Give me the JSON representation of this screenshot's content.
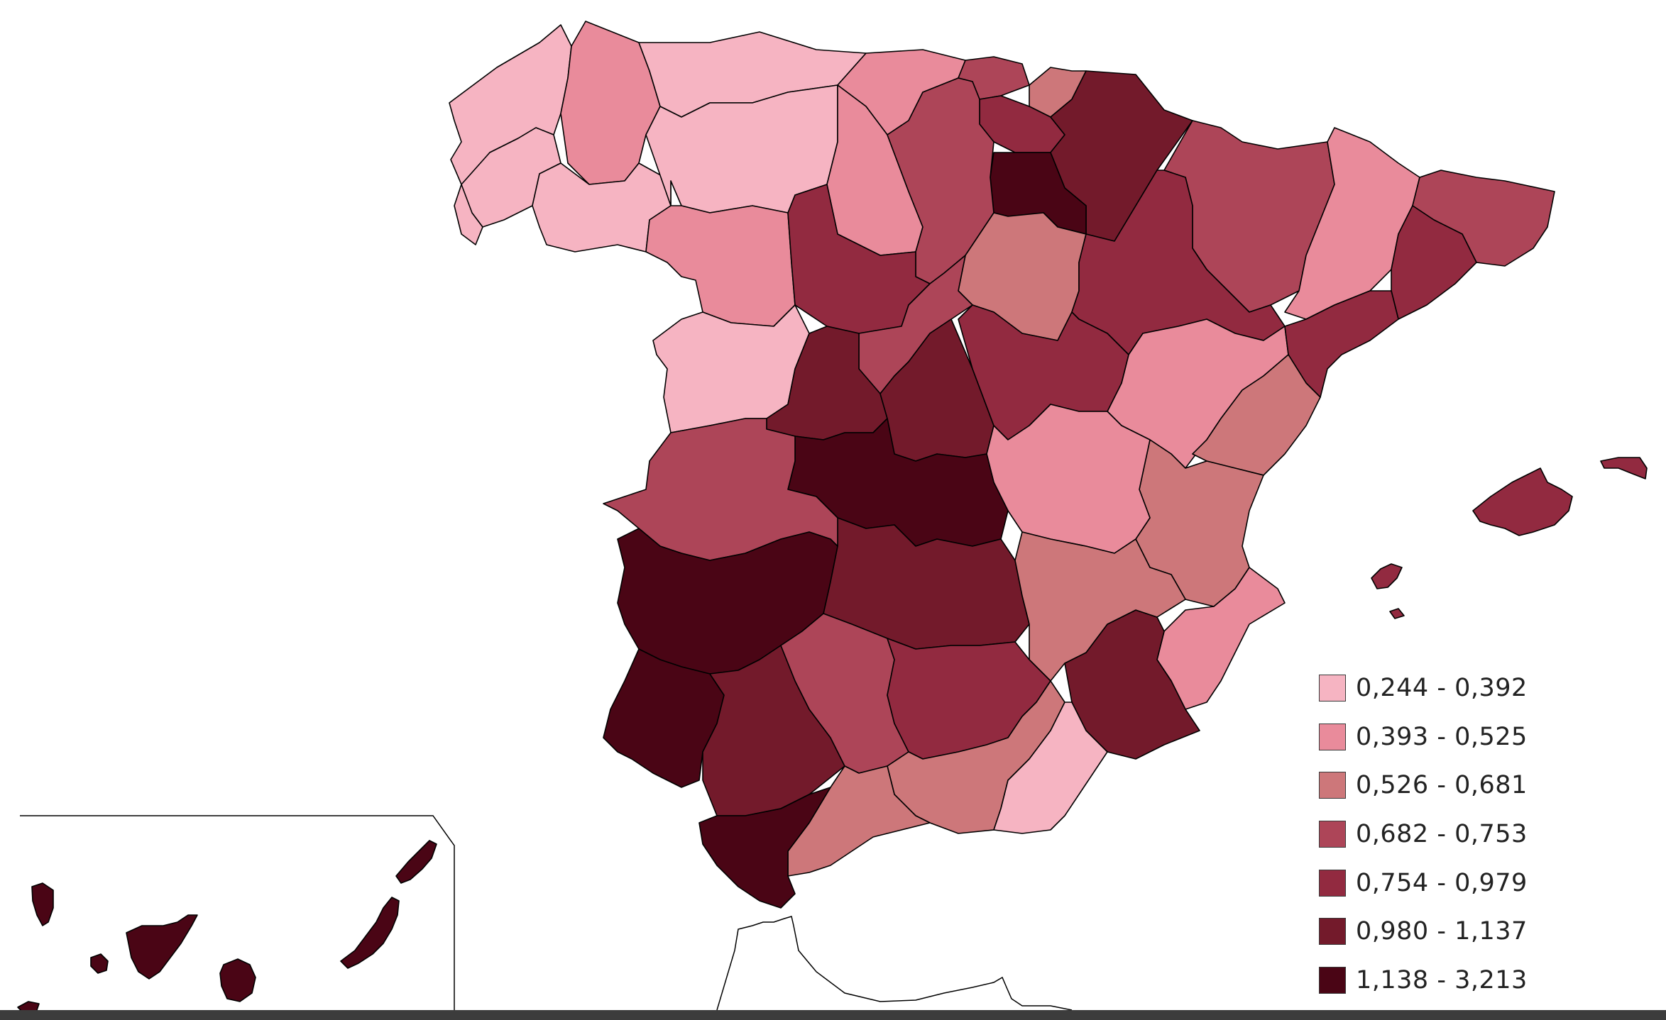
{
  "colors": {
    "c1": "#f6b4c2",
    "c2": "#e98b9b",
    "c3": "#cd777a",
    "c4": "#ad4558",
    "c5": "#922a40",
    "c6": "#731a2b",
    "c7": "#4a0515"
  },
  "legend": {
    "items": [
      {
        "label": "0,244 - 0,392",
        "color": "#f6b4c2"
      },
      {
        "label": "0,393 - 0,525",
        "color": "#e98b9b"
      },
      {
        "label": "0,526 - 0,681",
        "color": "#cd777a"
      },
      {
        "label": "0,682 - 0,753",
        "color": "#ad4558"
      },
      {
        "label": "0,754 - 0,979",
        "color": "#922a40"
      },
      {
        "label": "0,980 - 1,137",
        "color": "#731a2b"
      },
      {
        "label": "1,138 - 3,213",
        "color": "#4a0515"
      }
    ]
  }
}
